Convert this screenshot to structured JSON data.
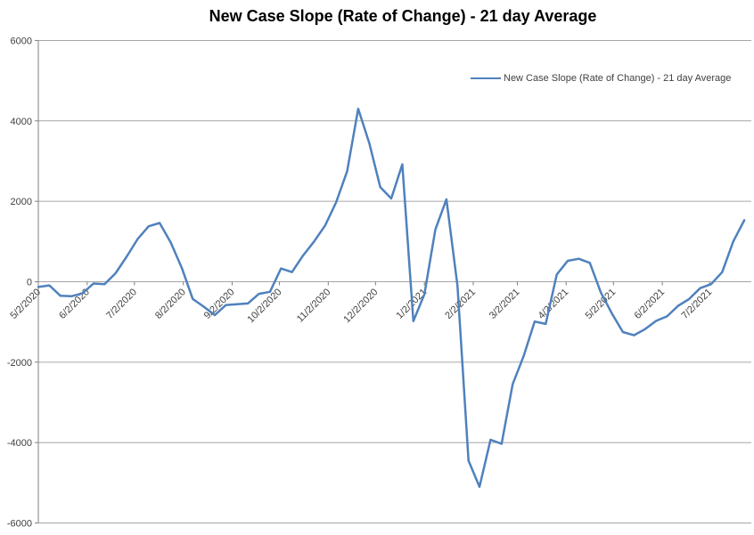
{
  "title": "New Case Slope (Rate of Change) - 21 day Average",
  "legend": {
    "label": "New Case Slope (Rate of Change) - 21 day Average"
  },
  "chart_data": {
    "type": "line",
    "title": "New Case Slope (Rate of Change) - 21 day Average",
    "xlabel": "",
    "ylabel": "",
    "legend_position": "top-right-inside",
    "grid": "horizontal",
    "line_color": "#4F81BD",
    "gridline_color": "#a6a6a6",
    "axis_color": "#808080",
    "label_color": "#404040",
    "ylim": [
      -6000,
      6000
    ],
    "y_ticks": [
      6000,
      4000,
      2000,
      0,
      -2000,
      -4000,
      -6000
    ],
    "x_tick_labels": [
      "5/2/2020",
      "6/2/2020",
      "7/2/2020",
      "8/2/2020",
      "9/2/2020",
      "10/2/2020",
      "11/2/2020",
      "12/2/2020",
      "1/2/2021",
      "2/2/2021",
      "3/2/2021",
      "4/2/2021",
      "5/2/2021",
      "6/2/2021",
      "7/2/2021"
    ],
    "series": [
      {
        "name": "New Case Slope (Rate of Change) - 21 day Average"
      }
    ],
    "points": [
      {
        "date": "5/2/2020",
        "value": -130
      },
      {
        "date": "5/9/2020",
        "value": -90
      },
      {
        "date": "5/16/2020",
        "value": -350
      },
      {
        "date": "5/23/2020",
        "value": -360
      },
      {
        "date": "5/30/2020",
        "value": -290
      },
      {
        "date": "6/6/2020",
        "value": -45
      },
      {
        "date": "6/13/2020",
        "value": -60
      },
      {
        "date": "6/20/2020",
        "value": 210
      },
      {
        "date": "6/27/2020",
        "value": 620
      },
      {
        "date": "7/4/2020",
        "value": 1060
      },
      {
        "date": "7/11/2020",
        "value": 1380
      },
      {
        "date": "7/18/2020",
        "value": 1460
      },
      {
        "date": "7/25/2020",
        "value": 980
      },
      {
        "date": "8/1/2020",
        "value": 350
      },
      {
        "date": "8/8/2020",
        "value": -430
      },
      {
        "date": "8/15/2020",
        "value": -620
      },
      {
        "date": "8/22/2020",
        "value": -830
      },
      {
        "date": "8/29/2020",
        "value": -580
      },
      {
        "date": "9/5/2020",
        "value": -560
      },
      {
        "date": "9/12/2020",
        "value": -540
      },
      {
        "date": "9/19/2020",
        "value": -300
      },
      {
        "date": "9/26/2020",
        "value": -250
      },
      {
        "date": "10/3/2020",
        "value": 330
      },
      {
        "date": "10/10/2020",
        "value": 240
      },
      {
        "date": "10/17/2020",
        "value": 650
      },
      {
        "date": "10/24/2020",
        "value": 1000
      },
      {
        "date": "10/31/2020",
        "value": 1400
      },
      {
        "date": "11/7/2020",
        "value": 1980
      },
      {
        "date": "11/14/2020",
        "value": 2750
      },
      {
        "date": "11/21/2020",
        "value": 4300
      },
      {
        "date": "11/28/2020",
        "value": 3450
      },
      {
        "date": "12/5/2020",
        "value": 2350
      },
      {
        "date": "12/12/2020",
        "value": 2070
      },
      {
        "date": "12/19/2020",
        "value": 2920
      },
      {
        "date": "12/26/2020",
        "value": -980
      },
      {
        "date": "1/2/2021",
        "value": -310
      },
      {
        "date": "1/9/2021",
        "value": 1300
      },
      {
        "date": "1/16/2021",
        "value": 2050
      },
      {
        "date": "1/23/2021",
        "value": -100
      },
      {
        "date": "1/30/2021",
        "value": -4450
      },
      {
        "date": "2/6/2021",
        "value": -5100
      },
      {
        "date": "2/13/2021",
        "value": -3930
      },
      {
        "date": "2/20/2021",
        "value": -4030
      },
      {
        "date": "2/27/2021",
        "value": -2550
      },
      {
        "date": "3/6/2021",
        "value": -1850
      },
      {
        "date": "3/13/2021",
        "value": -990
      },
      {
        "date": "3/20/2021",
        "value": -1050
      },
      {
        "date": "3/27/2021",
        "value": 180
      },
      {
        "date": "4/3/2021",
        "value": 520
      },
      {
        "date": "4/10/2021",
        "value": 570
      },
      {
        "date": "4/17/2021",
        "value": 470
      },
      {
        "date": "4/24/2021",
        "value": -270
      },
      {
        "date": "5/1/2021",
        "value": -790
      },
      {
        "date": "5/8/2021",
        "value": -1250
      },
      {
        "date": "5/15/2021",
        "value": -1330
      },
      {
        "date": "5/22/2021",
        "value": -1180
      },
      {
        "date": "5/29/2021",
        "value": -975
      },
      {
        "date": "6/5/2021",
        "value": -860
      },
      {
        "date": "6/12/2021",
        "value": -600
      },
      {
        "date": "6/19/2021",
        "value": -430
      },
      {
        "date": "6/26/2021",
        "value": -160
      },
      {
        "date": "7/3/2021",
        "value": -60
      },
      {
        "date": "7/10/2021",
        "value": 240
      },
      {
        "date": "7/17/2021",
        "value": 1000
      },
      {
        "date": "7/24/2021",
        "value": 1530
      }
    ]
  }
}
